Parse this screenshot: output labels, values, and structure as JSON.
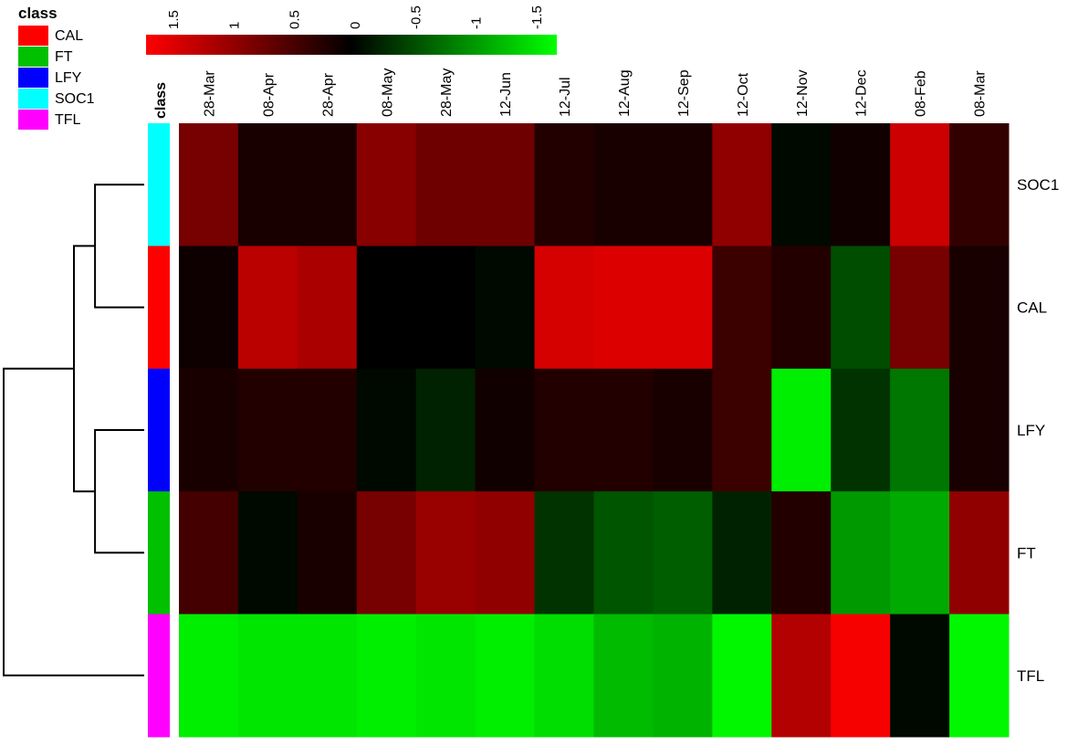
{
  "chart_data": {
    "type": "heatmap",
    "class_legend": {
      "title": "class",
      "entries": [
        {
          "label": "CAL",
          "color": "#ff0000"
        },
        {
          "label": "FT",
          "color": "#00c000"
        },
        {
          "label": "LFY",
          "color": "#0000ff"
        },
        {
          "label": "SOC1",
          "color": "#00ffff"
        },
        {
          "label": "TFL",
          "color": "#ff00ff"
        }
      ]
    },
    "color_scale": {
      "ticks": [
        "1.5",
        "1",
        "0.5",
        "0",
        "-0.5",
        "-1",
        "-1.5"
      ],
      "min": -1.5,
      "max": 1.5,
      "high_color": "#ff0000",
      "mid_color": "#000000",
      "low_color": "#00ff00"
    },
    "annotation_header": "class",
    "columns": [
      "28-Mar",
      "08-Apr",
      "28-Apr",
      "08-May",
      "28-May",
      "12-Jun",
      "12-Jul",
      "12-Aug",
      "12-Sep",
      "12-Oct",
      "12-Nov",
      "12-Dec",
      "08-Feb",
      "08-Mar"
    ],
    "rows": [
      {
        "label": "SOC1",
        "class": "SOC1",
        "values": [
          0.7,
          0.15,
          0.15,
          0.8,
          0.65,
          0.65,
          0.2,
          0.15,
          0.15,
          0.85,
          -0.05,
          0.1,
          1.2,
          0.3
        ]
      },
      {
        "label": "CAL",
        "class": "CAL",
        "values": [
          0.08,
          1.1,
          1.0,
          0.0,
          0.0,
          -0.05,
          1.25,
          1.3,
          1.3,
          0.35,
          0.2,
          -0.45,
          0.7,
          0.15
        ]
      },
      {
        "label": "LFY",
        "class": "LFY",
        "values": [
          0.15,
          0.2,
          0.2,
          -0.05,
          -0.2,
          0.1,
          0.2,
          0.2,
          0.15,
          0.35,
          -1.4,
          -0.3,
          -0.7,
          0.15
        ]
      },
      {
        "label": "FT",
        "class": "FT",
        "values": [
          0.4,
          -0.05,
          0.15,
          0.7,
          0.9,
          0.85,
          -0.3,
          -0.5,
          -0.55,
          -0.2,
          0.2,
          -0.9,
          -1.0,
          0.85
        ]
      },
      {
        "label": "TFL",
        "class": "TFL",
        "values": [
          -1.4,
          -1.35,
          -1.35,
          -1.4,
          -1.35,
          -1.4,
          -1.3,
          -1.1,
          -1.05,
          -1.45,
          1.05,
          1.45,
          -0.05,
          -1.45
        ]
      }
    ],
    "dendrogram": {
      "merges": [
        [
          "SOC1",
          "CAL"
        ],
        [
          "LFY",
          "FT"
        ],
        [
          "SOC1+CAL",
          "LFY+FT"
        ],
        [
          "SOC1+CAL+LFY+FT",
          "TFL"
        ]
      ],
      "heights": [
        0.35,
        0.35,
        0.5,
        1.0
      ]
    }
  }
}
